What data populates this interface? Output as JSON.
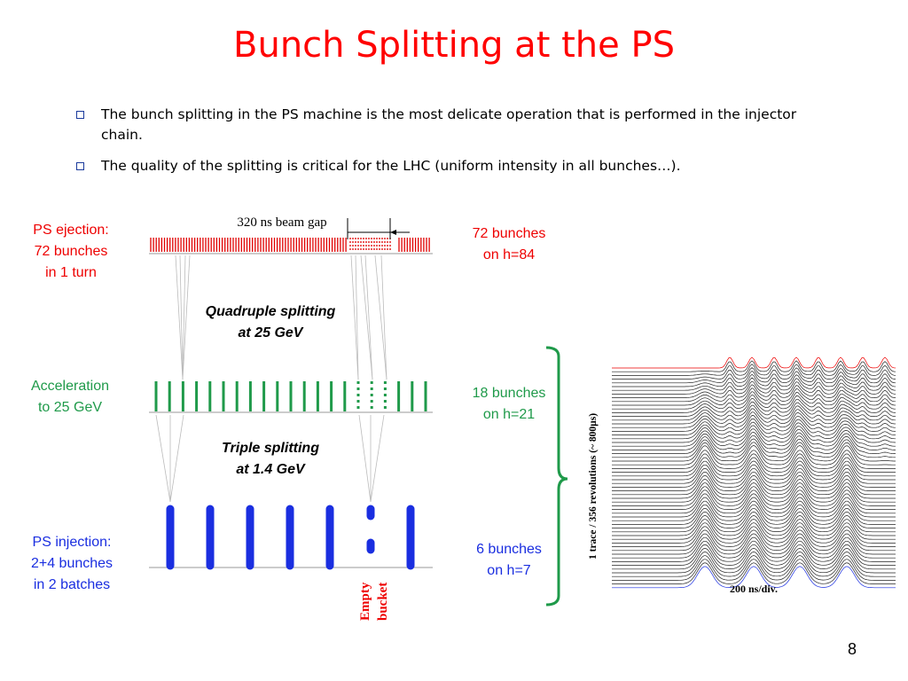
{
  "slide": {
    "title": "Bunch Splitting at the PS",
    "bullets": [
      "The bunch splitting in the PS machine is the most delicate operation that is performed in the injector chain.",
      "The quality of the splitting is critical for the LHC (uniform intensity in all bunches…)."
    ],
    "page_number": "8"
  },
  "diagram": {
    "beam_gap_label": "320 ns beam gap",
    "stages": {
      "ejection": {
        "left_label": [
          "PS ejection:",
          "72 bunches",
          "in 1 turn"
        ],
        "right_label": [
          "72 bunches",
          "on h=84"
        ],
        "color": "#e00000"
      },
      "acceleration": {
        "left_label": [
          "Acceleration",
          "to 25 GeV"
        ],
        "right_label": [
          "18 bunches",
          "on h=21"
        ],
        "color": "#1f9a4a"
      },
      "injection": {
        "left_label": [
          "PS injection:",
          "2+4 bunches",
          "in 2 batches"
        ],
        "right_label": [
          "6 bunches",
          "on h=7"
        ],
        "color": "#1a2ee0"
      }
    },
    "splittings": {
      "quadruple": [
        "Quadruple splitting",
        "at 25 GeV"
      ],
      "triple": [
        "Triple splitting",
        "at 1.4 GeV"
      ]
    },
    "empty_bucket_label": [
      "Empty",
      "bucket"
    ]
  },
  "mountain_plot": {
    "y_label": "1 trace / 356 revolutions (~ 800µs)",
    "x_label": "200 ns/div."
  }
}
